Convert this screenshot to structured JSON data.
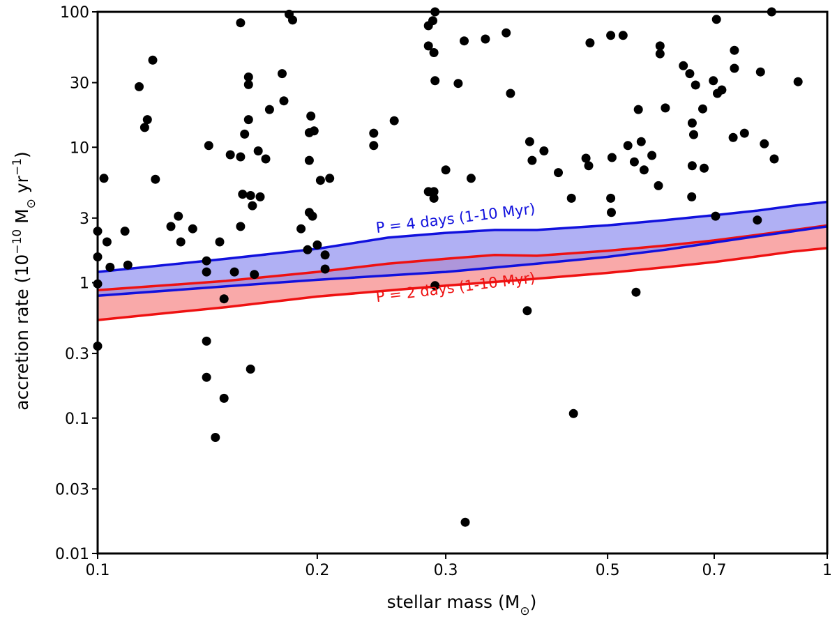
{
  "chart_data": {
    "type": "scatter",
    "x_scale": "log",
    "y_scale": "log",
    "xlim": [
      0.1,
      1
    ],
    "ylim": [
      0.01,
      100
    ],
    "xlabel": "stellar mass (M",
    "xlabel_sub": "⊙",
    "xlabel_end": ")",
    "ylabel_prefix": "accretion rate (10",
    "ylabel_exp": "−10",
    "ylabel_mid": " M",
    "ylabel_sun": "⊙",
    "ylabel_unit": " yr",
    "ylabel_exp2": "−1",
    "ylabel_end": ")",
    "x_ticks": [
      {
        "value": 0.1,
        "label": "0.1"
      },
      {
        "value": 0.2,
        "label": "0.2"
      },
      {
        "value": 0.3,
        "label": "0.3"
      },
      {
        "value": 0.5,
        "label": "0.5"
      },
      {
        "value": 0.7,
        "label": "0.7"
      },
      {
        "value": 1.0,
        "label": "1"
      }
    ],
    "y_ticks": [
      {
        "value": 100,
        "label": "100"
      },
      {
        "value": 30,
        "label": "30"
      },
      {
        "value": 10,
        "label": "10"
      },
      {
        "value": 3,
        "label": "3"
      },
      {
        "value": 1,
        "label": "1"
      },
      {
        "value": 0.3,
        "label": "0.3"
      },
      {
        "value": 0.1,
        "label": "0.1"
      },
      {
        "value": 0.03,
        "label": "0.03"
      },
      {
        "value": 0.01,
        "label": "0.01"
      }
    ],
    "bands": [
      {
        "name": "P = 2 days (1-10 Myr)",
        "color": "#ee1111",
        "fill": "#f8a0a0",
        "label_mass": 0.31,
        "label_rate": 0.85,
        "label_angle": -7,
        "upper": [
          [
            0.1,
            0.88
          ],
          [
            0.15,
            1.03
          ],
          [
            0.2,
            1.2
          ],
          [
            0.25,
            1.38
          ],
          [
            0.3,
            1.5
          ],
          [
            0.35,
            1.6
          ],
          [
            0.4,
            1.58
          ],
          [
            0.5,
            1.72
          ],
          [
            0.6,
            1.88
          ],
          [
            0.7,
            2.05
          ],
          [
            0.8,
            2.25
          ],
          [
            0.9,
            2.45
          ],
          [
            1.0,
            2.65
          ]
        ],
        "lower": [
          [
            0.1,
            0.53
          ],
          [
            0.15,
            0.66
          ],
          [
            0.2,
            0.79
          ],
          [
            0.3,
            0.95
          ],
          [
            0.4,
            1.07
          ],
          [
            0.5,
            1.18
          ],
          [
            0.6,
            1.3
          ],
          [
            0.7,
            1.42
          ],
          [
            0.8,
            1.56
          ],
          [
            0.9,
            1.7
          ],
          [
            1.0,
            1.8
          ]
        ]
      },
      {
        "name": "P = 4 days (1-10 Myr)",
        "color": "#1111dd",
        "fill": "#8e8ef0",
        "label_mass": 0.31,
        "label_rate": 2.75,
        "label_angle": -7,
        "upper": [
          [
            0.1,
            1.2
          ],
          [
            0.15,
            1.5
          ],
          [
            0.2,
            1.78
          ],
          [
            0.25,
            2.15
          ],
          [
            0.3,
            2.33
          ],
          [
            0.35,
            2.45
          ],
          [
            0.4,
            2.45
          ],
          [
            0.5,
            2.65
          ],
          [
            0.6,
            2.9
          ],
          [
            0.7,
            3.15
          ],
          [
            0.8,
            3.4
          ],
          [
            0.9,
            3.7
          ],
          [
            1.0,
            3.95
          ]
        ],
        "lower": [
          [
            0.1,
            0.8
          ],
          [
            0.15,
            0.94
          ],
          [
            0.2,
            1.05
          ],
          [
            0.3,
            1.2
          ],
          [
            0.4,
            1.38
          ],
          [
            0.5,
            1.55
          ],
          [
            0.6,
            1.75
          ],
          [
            0.7,
            1.98
          ],
          [
            0.8,
            2.2
          ],
          [
            0.9,
            2.4
          ],
          [
            1.0,
            2.6
          ]
        ]
      }
    ],
    "series": [
      {
        "name": "stars",
        "color": "#000000",
        "points": [
          [
            0.1,
            2.4
          ],
          [
            0.1,
            1.55
          ],
          [
            0.1,
            0.98
          ],
          [
            0.1,
            0.34
          ],
          [
            0.102,
            5.9
          ],
          [
            0.103,
            2.0
          ],
          [
            0.104,
            1.3
          ],
          [
            0.109,
            2.4
          ],
          [
            0.11,
            1.35
          ],
          [
            0.114,
            28
          ],
          [
            0.116,
            14
          ],
          [
            0.117,
            16
          ],
          [
            0.119,
            44
          ],
          [
            0.12,
            5.8
          ],
          [
            0.126,
            2.6
          ],
          [
            0.129,
            3.1
          ],
          [
            0.13,
            2.0
          ],
          [
            0.135,
            2.5
          ],
          [
            0.141,
            1.2
          ],
          [
            0.141,
            1.45
          ],
          [
            0.141,
            0.37
          ],
          [
            0.141,
            0.2
          ],
          [
            0.142,
            10.3
          ],
          [
            0.145,
            0.072
          ],
          [
            0.147,
            2.0
          ],
          [
            0.149,
            0.76
          ],
          [
            0.149,
            0.14
          ],
          [
            0.152,
            8.8
          ],
          [
            0.154,
            1.2
          ],
          [
            0.157,
            83
          ],
          [
            0.157,
            8.5
          ],
          [
            0.157,
            2.6
          ],
          [
            0.158,
            4.5
          ],
          [
            0.159,
            12.5
          ],
          [
            0.161,
            33
          ],
          [
            0.161,
            29
          ],
          [
            0.161,
            16
          ],
          [
            0.162,
            4.4
          ],
          [
            0.162,
            0.23
          ],
          [
            0.163,
            3.7
          ],
          [
            0.164,
            1.15
          ],
          [
            0.166,
            9.4
          ],
          [
            0.167,
            4.3
          ],
          [
            0.17,
            8.2
          ],
          [
            0.172,
            19
          ],
          [
            0.179,
            35
          ],
          [
            0.18,
            22
          ],
          [
            0.183,
            96
          ],
          [
            0.185,
            87
          ],
          [
            0.19,
            2.5
          ],
          [
            0.194,
            1.75
          ],
          [
            0.195,
            3.3
          ],
          [
            0.195,
            8.0
          ],
          [
            0.195,
            12.8
          ],
          [
            0.196,
            17
          ],
          [
            0.197,
            3.1
          ],
          [
            0.198,
            13.2
          ],
          [
            0.2,
            1.9
          ],
          [
            0.202,
            5.7
          ],
          [
            0.205,
            1.6
          ],
          [
            0.205,
            1.26
          ],
          [
            0.208,
            5.9
          ],
          [
            0.239,
            12.7
          ],
          [
            0.239,
            10.3
          ],
          [
            0.255,
            15.7
          ],
          [
            0.284,
            79
          ],
          [
            0.284,
            56
          ],
          [
            0.284,
            4.7
          ],
          [
            0.288,
            86
          ],
          [
            0.289,
            50
          ],
          [
            0.289,
            4.2
          ],
          [
            0.289,
            4.7
          ],
          [
            0.29,
            100
          ],
          [
            0.29,
            31
          ],
          [
            0.29,
            0.95
          ],
          [
            0.3,
            6.8
          ],
          [
            0.312,
            29.6
          ],
          [
            0.318,
            61
          ],
          [
            0.319,
            0.017
          ],
          [
            0.325,
            5.9
          ],
          [
            0.34,
            63
          ],
          [
            0.363,
            70
          ],
          [
            0.368,
            25
          ],
          [
            0.388,
            0.62
          ],
          [
            0.391,
            11
          ],
          [
            0.394,
            8.0
          ],
          [
            0.409,
            9.4
          ],
          [
            0.428,
            6.5
          ],
          [
            0.446,
            4.2
          ],
          [
            0.449,
            0.108
          ],
          [
            0.467,
            8.3
          ],
          [
            0.471,
            7.3
          ],
          [
            0.473,
            59
          ],
          [
            0.505,
            67
          ],
          [
            0.505,
            4.2
          ],
          [
            0.506,
            3.3
          ],
          [
            0.507,
            8.4
          ],
          [
            0.525,
            67
          ],
          [
            0.533,
            10.3
          ],
          [
            0.544,
            7.8
          ],
          [
            0.547,
            0.85
          ],
          [
            0.551,
            19
          ],
          [
            0.556,
            11
          ],
          [
            0.561,
            6.8
          ],
          [
            0.575,
            8.7
          ],
          [
            0.587,
            5.2
          ],
          [
            0.59,
            49
          ],
          [
            0.59,
            56
          ],
          [
            0.6,
            19.5
          ],
          [
            0.635,
            40
          ],
          [
            0.648,
            35
          ],
          [
            0.652,
            4.3
          ],
          [
            0.653,
            7.3
          ],
          [
            0.653,
            15.1
          ],
          [
            0.656,
            12.4
          ],
          [
            0.66,
            28.8
          ],
          [
            0.675,
            19.2
          ],
          [
            0.678,
            7.0
          ],
          [
            0.698,
            31
          ],
          [
            0.703,
            3.1
          ],
          [
            0.705,
            88
          ],
          [
            0.707,
            25
          ],
          [
            0.717,
            26.5
          ],
          [
            0.743,
            11.8
          ],
          [
            0.746,
            52
          ],
          [
            0.746,
            38.3
          ],
          [
            0.77,
            12.7
          ],
          [
            0.802,
            2.9
          ],
          [
            0.81,
            36
          ],
          [
            0.82,
            10.6
          ],
          [
            0.839,
            100
          ],
          [
            0.846,
            8.2
          ],
          [
            0.912,
            30.5
          ]
        ]
      }
    ]
  }
}
